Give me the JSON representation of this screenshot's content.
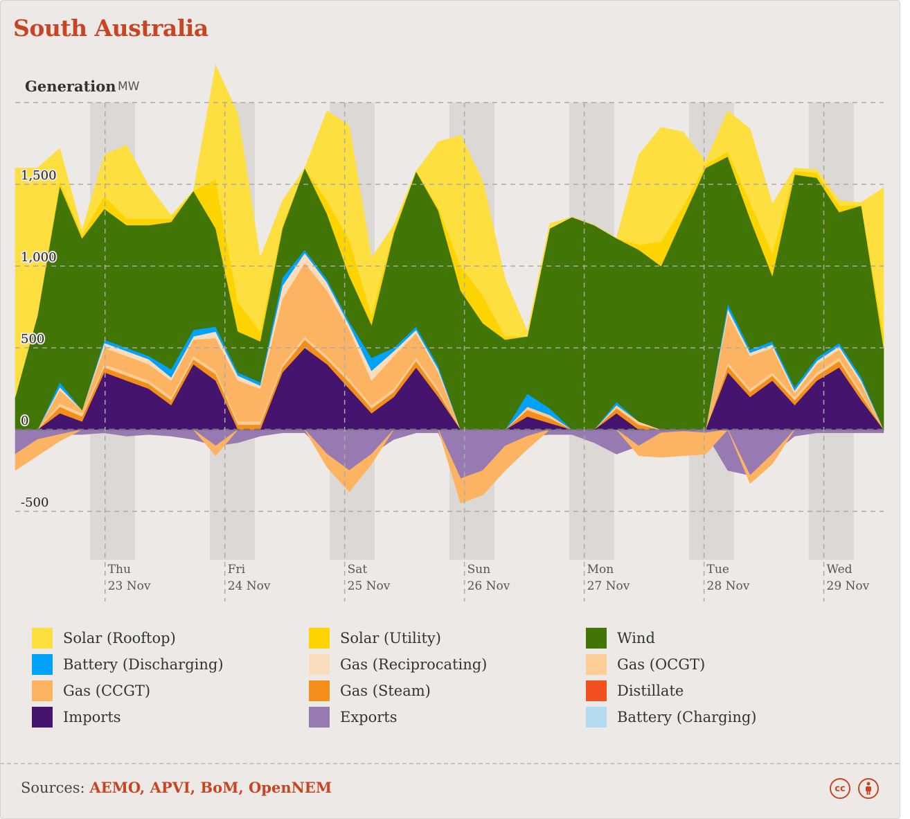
{
  "region": "South Australia",
  "sources": {
    "label": "Sources:",
    "links": "AEMO, APVI, BoM, OpenNEM"
  },
  "license_icons": [
    "creative-commons-icon",
    "attribution-icon"
  ],
  "legend": [
    {
      "label": "Solar (Rooftop)",
      "color": "#fde03f"
    },
    {
      "label": "Solar (Utility)",
      "color": "#fdd400"
    },
    {
      "label": "Wind",
      "color": "#417505"
    },
    {
      "label": "Battery (Discharging)",
      "color": "#00a2fa"
    },
    {
      "label": "Gas (Reciprocating)",
      "color": "#f9dcbc"
    },
    {
      "label": "Gas (OCGT)",
      "color": "#ffcd96"
    },
    {
      "label": "Gas (CCGT)",
      "color": "#fdb462"
    },
    {
      "label": "Gas (Steam)",
      "color": "#f48e1b"
    },
    {
      "label": "Distillate",
      "color": "#f35020"
    },
    {
      "label": "Imports",
      "color": "#44146f"
    },
    {
      "label": "Exports",
      "color": "#977ab1"
    },
    {
      "label": "Battery (Charging)",
      "color": "#b3daf0"
    }
  ],
  "chart_data": {
    "type": "area",
    "stacked": true,
    "title": "Generation",
    "unit": "MW",
    "ylim": [
      -500,
      2000
    ],
    "yticks": [
      -500,
      0,
      500,
      1000,
      1500
    ],
    "ytick_labels": [
      "-500",
      "0",
      "500",
      "1,000",
      "1,500"
    ],
    "x_start": "2023-11-22 06:00",
    "x_end": "2023-11-29 12:00",
    "x_step_hours": 6,
    "xticks": [
      {
        "day": "Thu",
        "date": "23 Nov",
        "x": "2023-11-23 00:00"
      },
      {
        "day": "Fri",
        "date": "24 Nov",
        "x": "2023-11-24 00:00"
      },
      {
        "day": "Sat",
        "date": "25 Nov",
        "x": "2023-11-25 00:00"
      },
      {
        "day": "Sun",
        "date": "26 Nov",
        "x": "2023-11-26 00:00"
      },
      {
        "day": "Mon",
        "date": "27 Nov",
        "x": "2023-11-27 00:00"
      },
      {
        "day": "Tue",
        "date": "28 Nov",
        "x": "2023-11-28 00:00"
      },
      {
        "day": "Wed",
        "date": "29 Nov",
        "x": "2023-11-29 00:00"
      }
    ],
    "night_bands": [
      [
        "2023-11-22 21:00",
        "2023-11-23 06:00"
      ],
      [
        "2023-11-23 21:00",
        "2023-11-24 06:00"
      ],
      [
        "2023-11-24 21:00",
        "2023-11-25 06:00"
      ],
      [
        "2023-11-25 21:00",
        "2023-11-26 06:00"
      ],
      [
        "2023-11-26 21:00",
        "2023-11-27 06:00"
      ],
      [
        "2023-11-27 21:00",
        "2023-11-28 06:00"
      ],
      [
        "2023-11-28 21:00",
        "2023-11-29 06:00"
      ]
    ],
    "grid": true,
    "legend_position": "bottom",
    "series": [
      {
        "name": "Exports",
        "color": "#977ab1",
        "values": [
          -150,
          -60,
          -30,
          -30,
          -20,
          -40,
          -30,
          -40,
          -60,
          -100,
          -80,
          -40,
          -20,
          -20,
          -150,
          -250,
          -150,
          -60,
          -20,
          -20,
          -300,
          -250,
          -100,
          -40,
          -30,
          -30,
          -80,
          -150,
          -100,
          -20,
          -10,
          -20,
          -250,
          -280,
          -150,
          -40,
          -20,
          -20,
          -20,
          -20
        ]
      },
      {
        "name": "Gas (CCGT)",
        "color": "#fdb462",
        "values": [
          -100,
          -100,
          -40,
          0,
          0,
          0,
          0,
          0,
          0,
          -60,
          0,
          0,
          0,
          0,
          -80,
          -130,
          -60,
          0,
          0,
          0,
          -150,
          -150,
          -150,
          -80,
          0,
          0,
          0,
          0,
          -60,
          -150,
          -150,
          -130,
          0,
          -50,
          -60,
          0,
          0,
          0,
          0,
          0
        ]
      },
      {
        "name": "Imports",
        "color": "#44146f",
        "values": [
          0,
          0,
          100,
          50,
          350,
          300,
          250,
          150,
          400,
          300,
          0,
          0,
          350,
          500,
          400,
          250,
          100,
          200,
          380,
          200,
          0,
          0,
          0,
          80,
          40,
          0,
          0,
          100,
          0,
          0,
          0,
          0,
          350,
          200,
          300,
          150,
          300,
          380,
          180,
          0
        ]
      },
      {
        "name": "Gas (Steam)",
        "color": "#f48e1b",
        "values": [
          0,
          0,
          40,
          30,
          30,
          30,
          30,
          30,
          30,
          40,
          30,
          30,
          30,
          50,
          30,
          40,
          30,
          30,
          40,
          30,
          0,
          0,
          0,
          40,
          30,
          0,
          0,
          30,
          30,
          0,
          0,
          0,
          40,
          30,
          30,
          30,
          30,
          40,
          30,
          0
        ]
      },
      {
        "name": "Gas (OCGT)",
        "color": "#ffcd96",
        "values": [
          0,
          0,
          20,
          20,
          20,
          20,
          20,
          20,
          20,
          20,
          20,
          20,
          20,
          20,
          20,
          20,
          20,
          20,
          20,
          20,
          0,
          0,
          0,
          20,
          20,
          0,
          0,
          20,
          20,
          0,
          0,
          0,
          20,
          20,
          20,
          20,
          20,
          20,
          20,
          0
        ]
      },
      {
        "name": "Gas (CCGT)",
        "color": "#fdb462",
        "values": [
          0,
          0,
          80,
          20,
          100,
          100,
          100,
          100,
          100,
          200,
          250,
          200,
          400,
          450,
          400,
          300,
          150,
          200,
          150,
          100,
          0,
          0,
          0,
          0,
          0,
          0,
          0,
          0,
          0,
          0,
          0,
          0,
          300,
          200,
          150,
          20,
          50,
          50,
          50,
          0
        ]
      },
      {
        "name": "Gas (Reciprocating)",
        "color": "#f9dcbc",
        "values": [
          0,
          0,
          20,
          0,
          30,
          30,
          30,
          20,
          20,
          40,
          30,
          20,
          80,
          60,
          50,
          30,
          60,
          30,
          20,
          20,
          0,
          0,
          0,
          0,
          0,
          0,
          0,
          0,
          0,
          0,
          0,
          0,
          30,
          20,
          20,
          20,
          20,
          20,
          20,
          0
        ]
      },
      {
        "name": "Battery (Discharging)",
        "color": "#00a2fa",
        "values": [
          0,
          0,
          30,
          0,
          20,
          20,
          20,
          50,
          40,
          30,
          20,
          20,
          50,
          20,
          20,
          20,
          80,
          20,
          20,
          20,
          0,
          0,
          0,
          80,
          40,
          0,
          0,
          20,
          0,
          0,
          0,
          0,
          30,
          20,
          20,
          20,
          20,
          20,
          20,
          0
        ]
      },
      {
        "name": "Wind",
        "color": "#417505",
        "values": [
          200,
          700,
          1200,
          1050,
          800,
          750,
          800,
          900,
          850,
          600,
          250,
          250,
          300,
          500,
          400,
          280,
          200,
          700,
          950,
          950,
          850,
          650,
          550,
          350,
          1100,
          1300,
          1250,
          1000,
          1050,
          1000,
          1300,
          1600,
          900,
          800,
          400,
          1300,
          1100,
          800,
          1050,
          500
        ]
      },
      {
        "name": "Solar (Utility)",
        "color": "#fdd400",
        "values": [
          0,
          0,
          30,
          20,
          80,
          40,
          40,
          20,
          0,
          300,
          180,
          60,
          20,
          0,
          80,
          220,
          60,
          20,
          0,
          20,
          150,
          170,
          20,
          0,
          0,
          0,
          0,
          0,
          30,
          150,
          70,
          20,
          30,
          100,
          140,
          20,
          30,
          40,
          0,
          80
        ]
      },
      {
        "name": "Solar (Rooftop)",
        "color": "#fde03f",
        "values": [
          1400,
          900,
          200,
          30,
          250,
          450,
          200,
          20,
          0,
          700,
          1150,
          450,
          150,
          0,
          550,
          700,
          350,
          30,
          0,
          400,
          800,
          700,
          350,
          30,
          30,
          0,
          0,
          0,
          550,
          700,
          450,
          20,
          250,
          450,
          300,
          20,
          20,
          30,
          20,
          900
        ]
      }
    ]
  }
}
